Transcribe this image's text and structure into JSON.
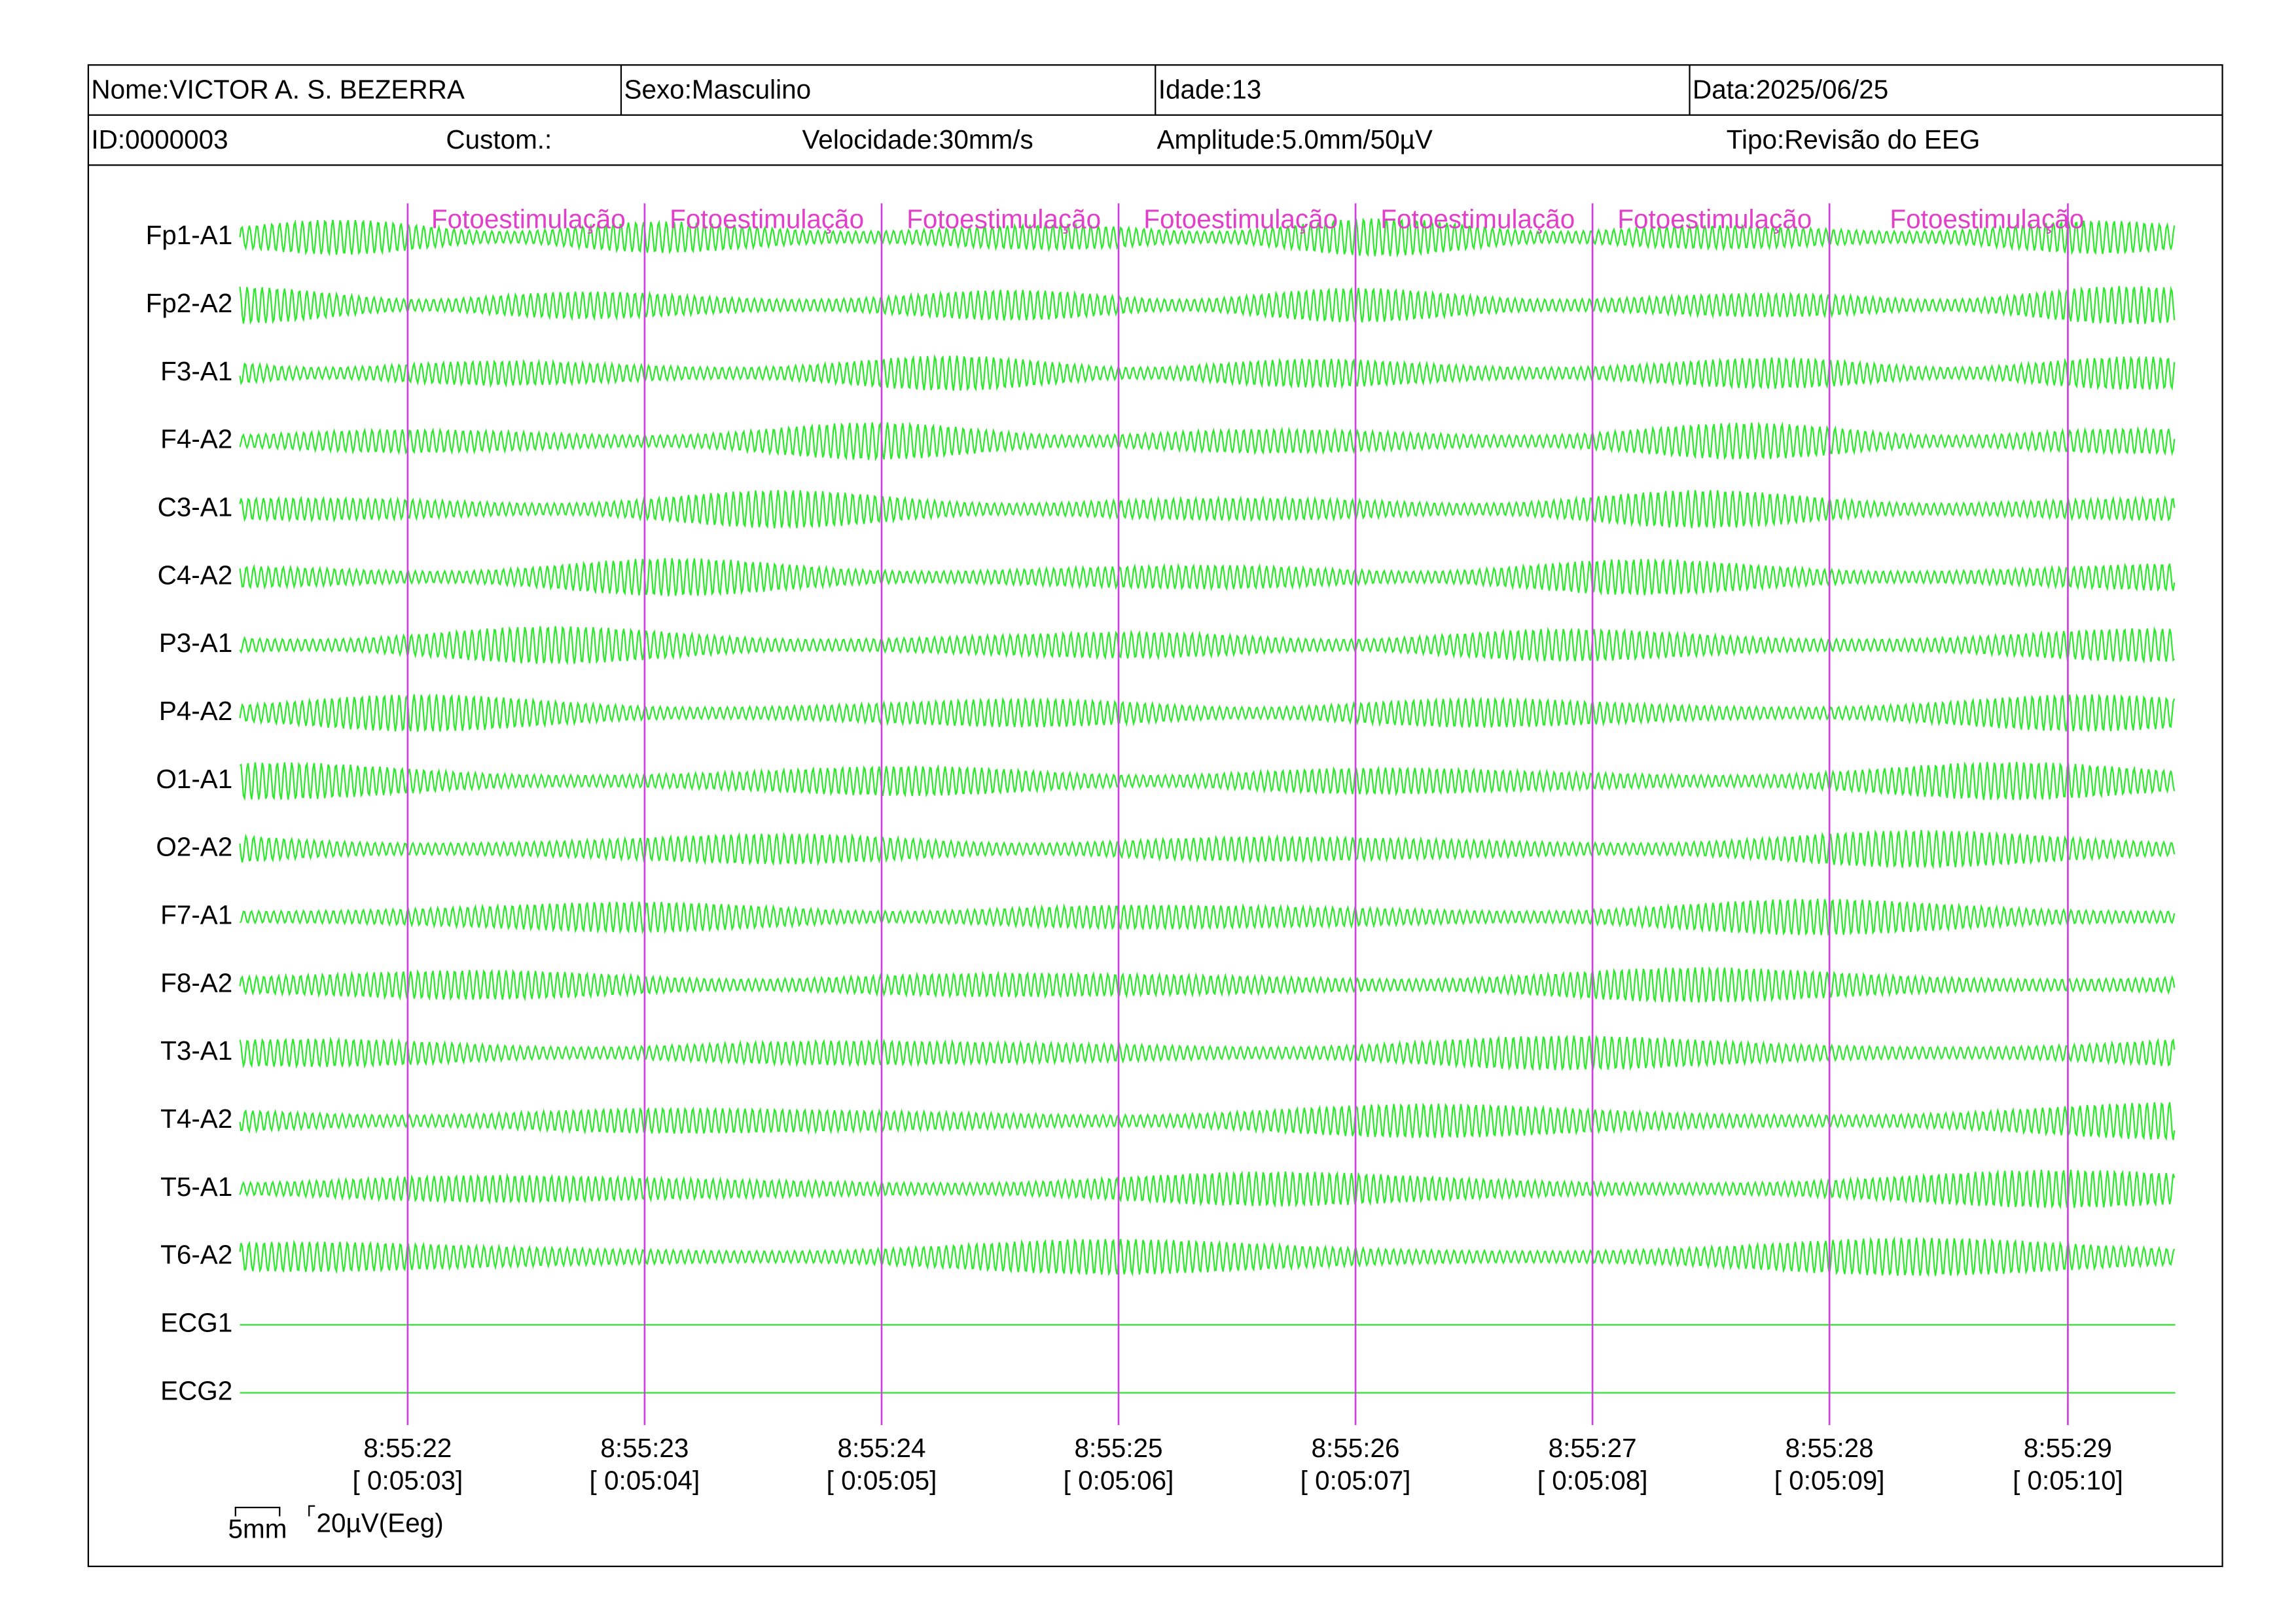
{
  "header": {
    "row1": [
      "Nome:VICTOR A. S. BEZERRA",
      "Sexo:Masculino",
      "Idade:13",
      "Data:2025/06/25"
    ],
    "row2": [
      "ID:0000003",
      "Custom.:",
      "Velocidade:30mm/s",
      "Amplitude:5.0mm/50µV",
      "Tipo:Revisão do EEG"
    ]
  },
  "channels": [
    "Fp1-A1",
    "Fp2-A2",
    "F3-A1",
    "F4-A2",
    "C3-A1",
    "C4-A2",
    "P3-A1",
    "P4-A2",
    "O1-A1",
    "O2-A2",
    "F7-A1",
    "F8-A2",
    "T3-A1",
    "T4-A2",
    "T5-A1",
    "T6-A2",
    "ECG1",
    "ECG2"
  ],
  "markers": [
    "Fotoestimulação",
    "Fotoestimulação",
    "Fotoestimulação",
    "Fotoestimulação",
    "Fotoestimulação",
    "Fotoestimulação",
    "Fotoestimulação"
  ],
  "time_labels": [
    {
      "time": "8:55:22",
      "elapsed": "[ 0:05:03]"
    },
    {
      "time": "8:55:23",
      "elapsed": "[ 0:05:04]"
    },
    {
      "time": "8:55:24",
      "elapsed": "[ 0:05:05]"
    },
    {
      "time": "8:55:25",
      "elapsed": "[ 0:05:06]"
    },
    {
      "time": "8:55:26",
      "elapsed": "[ 0:05:07]"
    },
    {
      "time": "8:55:27",
      "elapsed": "[ 0:05:08]"
    },
    {
      "time": "8:55:28",
      "elapsed": "[ 0:05:09]"
    },
    {
      "time": "8:55:29",
      "elapsed": "[ 0:05:10]"
    }
  ],
  "scale": {
    "time": "5mm",
    "amplitude": "20µV(Eeg)"
  }
}
